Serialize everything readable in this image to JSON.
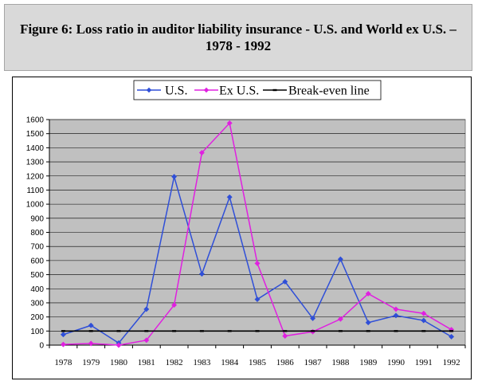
{
  "figure": {
    "title": "Figure 6: Loss ratio in auditor liability insurance - U.S. and World ex U.S. – 1978 - 1992"
  },
  "chart_data": {
    "type": "line",
    "title": "Figure 6: Loss ratio in auditor liability insurance - U.S. and World ex U.S. – 1978 - 1992",
    "xlabel": "",
    "ylabel": "",
    "x": [
      "1978",
      "1979",
      "1980",
      "1981",
      "1982",
      "1983",
      "1984",
      "1985",
      "1986",
      "1987",
      "1988",
      "1989",
      "1990",
      "1991",
      "1992"
    ],
    "ylim": [
      0,
      1600
    ],
    "yticks": [
      0,
      100,
      200,
      300,
      400,
      500,
      600,
      700,
      800,
      900,
      1000,
      1100,
      1200,
      1300,
      1400,
      1500,
      1600
    ],
    "grid": true,
    "legend_position": "top",
    "series": [
      {
        "name": "U.S.",
        "color": "#2f4fd8",
        "values": [
          75,
          140,
          15,
          255,
          1195,
          505,
          1050,
          325,
          450,
          190,
          610,
          160,
          210,
          175,
          60
        ]
      },
      {
        "name": "Ex U.S.",
        "color": "#e020e0",
        "values": [
          5,
          12,
          0,
          35,
          285,
          1365,
          1575,
          580,
          65,
          95,
          185,
          365,
          255,
          225,
          110
        ]
      },
      {
        "name": "Break-even line",
        "color": "#000000",
        "values": [
          100,
          100,
          100,
          100,
          100,
          100,
          100,
          100,
          100,
          100,
          100,
          100,
          100,
          100,
          100
        ]
      }
    ]
  }
}
